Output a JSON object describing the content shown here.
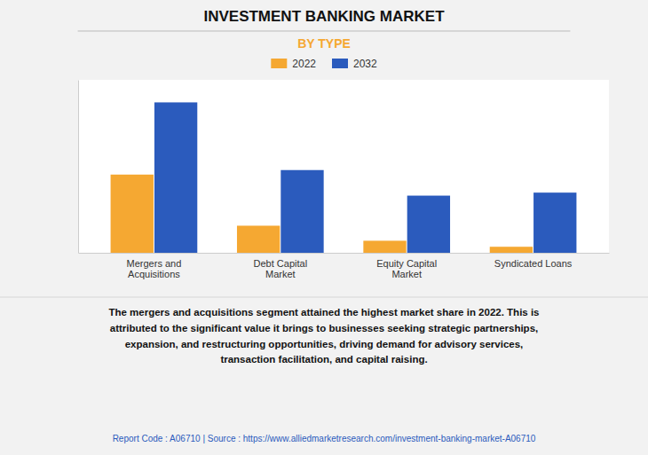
{
  "chart_data": {
    "type": "bar",
    "title": "INVESTMENT BANKING MARKET",
    "subtitle": "BY TYPE",
    "categories": [
      "Mergers and\nAcquisitions",
      "Debt Capital\nMarket",
      "Equity Capital\nMarket",
      "Syndicated Loans"
    ],
    "series": [
      {
        "name": "2022",
        "color": "#F5A832",
        "values": [
          52,
          18,
          8,
          4
        ]
      },
      {
        "name": "2032",
        "color": "#2B5BBD",
        "values": [
          100,
          55,
          38,
          40
        ]
      }
    ],
    "ylim": [
      0,
      115
    ],
    "yticks": [],
    "grid": false,
    "tick_labels": "x",
    "legend": "top",
    "annotations": [
      "The mergers and acquisitions segment attained the highest market share in 2022. This is\nattributed to the significant value it brings to businesses seeking strategic partnerships,\nexpansion, and restructuring opportunities, driving demand for advisory services,\ntransaction facilitation, and capital raising.",
      "Report Code : A06710  |  Source : https://www.alliedmarketresearch.com/investment-banking-market-A06710"
    ]
  }
}
